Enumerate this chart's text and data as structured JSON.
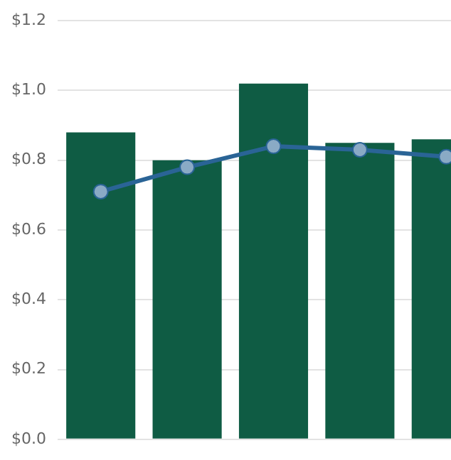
{
  "chart_data": {
    "type": "bar",
    "categories": [
      null,
      null,
      null,
      null,
      null
    ],
    "series": [
      {
        "color": "#0f5c44",
        "values": [
          0.88,
          0.8,
          1.02,
          0.85,
          0.86
        ]
      },
      {
        "type": "line",
        "color": "#2a6496",
        "values": [
          0.71,
          0.78,
          0.84,
          0.83,
          0.81
        ]
      }
    ],
    "ylim": [
      0,
      1.2
    ],
    "yticks": [
      {
        "value": 0,
        "label": "$0.0"
      },
      {
        "value": 0.2,
        "label": "$0.2"
      },
      {
        "value": 0.4,
        "label": "$0.4"
      },
      {
        "value": 0.6,
        "label": "$0.6"
      },
      {
        "value": 0.8,
        "label": "$0.8"
      },
      {
        "value": 1.0,
        "label": "$1.0"
      },
      {
        "value": 1.2,
        "label": "$1.2"
      }
    ],
    "grid": "y",
    "legend": false,
    "tick_labels": "y",
    "marker": "circle"
  }
}
